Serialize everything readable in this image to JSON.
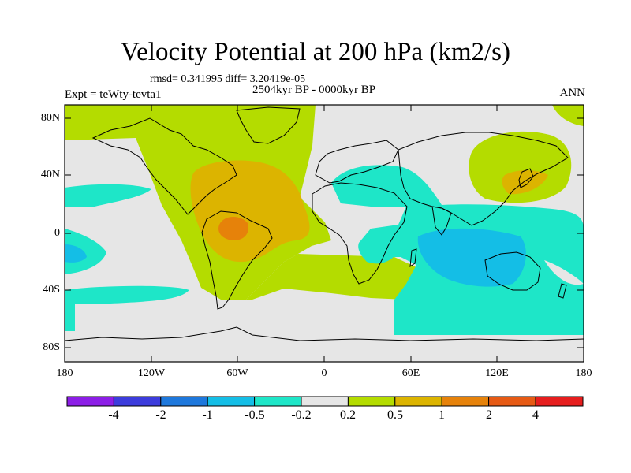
{
  "title": "Velocity Potential at 200 hPa (km2/s)",
  "stats_line": "rmsd= 0.341995 diff= 3.20419e-05",
  "period": "2504kyr BP - 0000kyr BP",
  "experiment": "Expt = teWty-tevta1",
  "season": "ANN",
  "lat_ticks": [
    "80N",
    "40N",
    "0",
    "40S",
    "80S"
  ],
  "lon_ticks": [
    "180",
    "120W",
    "60W",
    "0",
    "60E",
    "120E",
    "180"
  ],
  "colorbar": {
    "labels": [
      "-4",
      "-2",
      "-1",
      "-0.5",
      "-0.2",
      "0.2",
      "0.5",
      "1",
      "2",
      "4"
    ],
    "colors": [
      "#8c1ee6",
      "#3c3cdc",
      "#1e78dc",
      "#14bee6",
      "#1ee6c8",
      "#e6e6e6",
      "#b4dc00",
      "#dcb400",
      "#e6820a",
      "#e65a14",
      "#e61e1e"
    ]
  },
  "colors": {
    "neutral": "#e6e6e6",
    "pos_low": "#b4dc00",
    "pos_mid": "#dcb400",
    "pos_high": "#e6820a",
    "neg_low": "#1ee6c8",
    "neg_mid": "#14bee6"
  }
}
